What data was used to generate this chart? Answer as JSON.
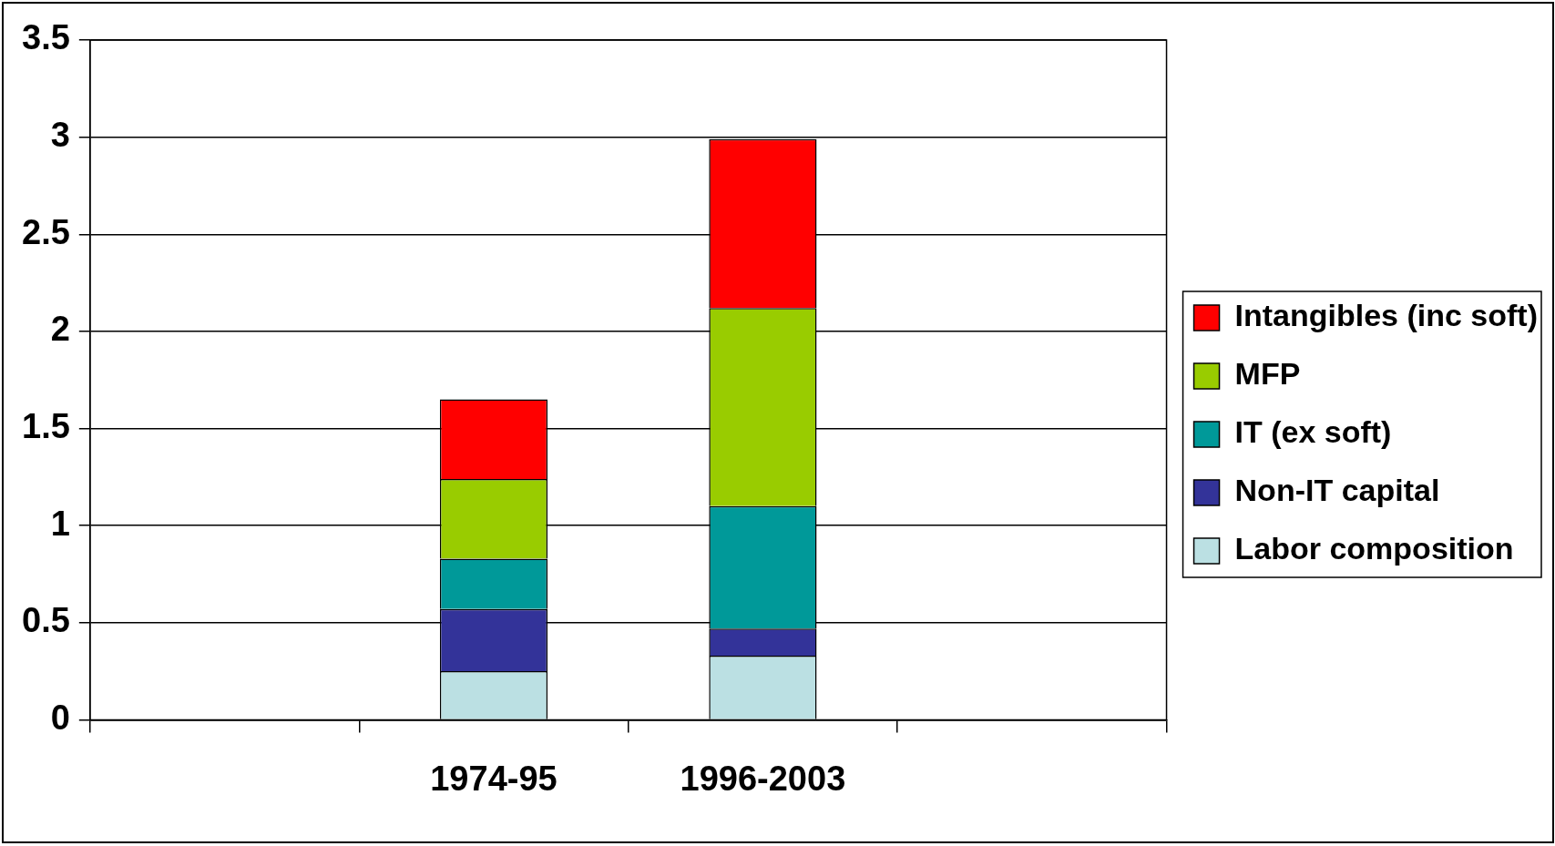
{
  "chart_data": {
    "type": "bar",
    "stacked": true,
    "categories": [
      null,
      "1974-95",
      "1996-2003",
      null
    ],
    "series": [
      {
        "name": "Labor composition",
        "color": "#bbe0e3",
        "values": [
          null,
          0.25,
          0.33,
          null
        ]
      },
      {
        "name": "Non-IT capital",
        "color": "#333399",
        "values": [
          null,
          0.32,
          0.14,
          null
        ]
      },
      {
        "name": "IT (ex soft)",
        "color": "#009999",
        "values": [
          null,
          0.26,
          0.63,
          null
        ]
      },
      {
        "name": "MFP",
        "color": "#99cc00",
        "values": [
          null,
          0.41,
          1.02,
          null
        ]
      },
      {
        "name": "Intangibles (inc soft)",
        "color": "#ff0000",
        "values": [
          null,
          0.41,
          0.87,
          null
        ]
      }
    ],
    "ylim": [
      0,
      3.5
    ],
    "yticks": [
      0,
      0.5,
      1,
      1.5,
      2,
      2.5,
      3,
      3.5
    ],
    "grid": "y",
    "legend": "right"
  }
}
